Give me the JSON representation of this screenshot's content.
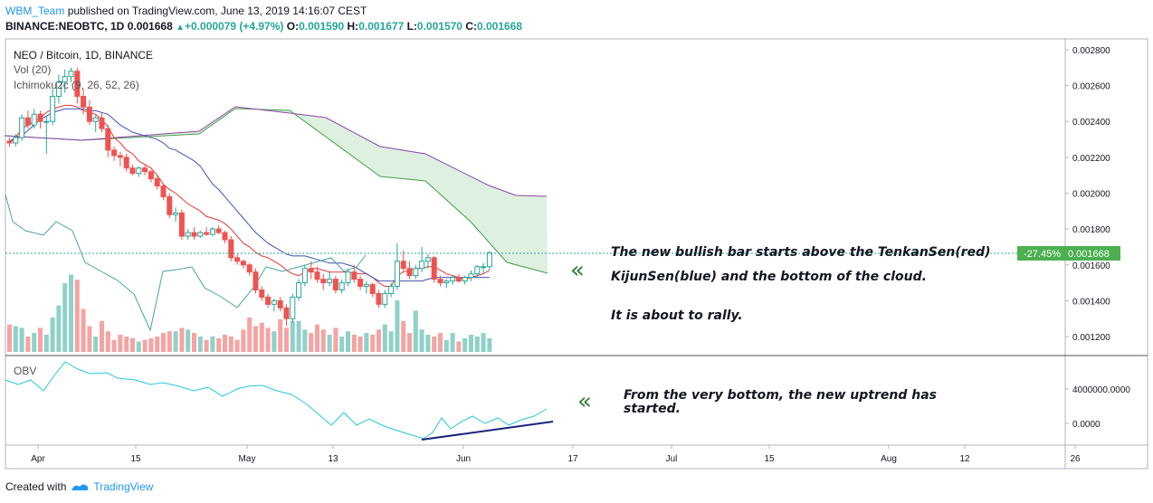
{
  "header": {
    "username": "WBM_Team",
    "published": "published on TradingView.com, June 13, 2019 14:16:07 CEST",
    "symbol": "BINANCE:NEOBTC, 1D",
    "last": "0.001668",
    "change": "+0.000079 (+4.97%)",
    "o_label": "O:",
    "o_value": "0.001590",
    "h_label": "H:",
    "h_value": "0.001677",
    "l_label": "L:",
    "l_value": "0.001570",
    "c_label": "C:",
    "c_value": "0.001668"
  },
  "legend": {
    "title": "NEO / Bitcoin, 1D, BINANCE",
    "vol": "Vol (20)",
    "ichimoku": "Ichimoku2c (9, 26, 52, 26)",
    "obv": "OBV"
  },
  "price_tag": {
    "pct": "-27.45%",
    "price": "0.001668",
    "color": "#4caf50"
  },
  "annotations": {
    "main_line1": "The new bullish bar starts above the TenkanSen(red)",
    "main_line2": "KijunSen(blue) and the bottom of the cloud.",
    "main_line3": "It is about to rally.",
    "obv_line1": "From the very bottom, the new uptrend has",
    "obv_line2": "started.",
    "arrow": "«"
  },
  "footer": {
    "created": "Created with",
    "brand": "TradingView"
  },
  "colors": {
    "up": "#26a69a",
    "down": "#ef5350",
    "vol_up": "#8fd1c8",
    "vol_down": "#f5a3a3",
    "tenkan": "#e53935",
    "kijun": "#3f51b5",
    "chikou": "#4aa3a3",
    "span_a": "#43a047",
    "span_b": "#8e44ad",
    "cloud": "#c8e6c9",
    "obv": "#26c6da",
    "trend": "#1a237e",
    "arrow": "#2e7d32"
  },
  "chart_data": {
    "type": "candlestick",
    "price_axis": {
      "ylim": [
        0.00113,
        0.00284
      ],
      "ticks": [
        "0.002800",
        "0.002600",
        "0.002400",
        "0.002200",
        "0.002000",
        "0.001800",
        "0.001600",
        "0.001400",
        "0.001200"
      ]
    },
    "obv_axis": {
      "ticks": [
        "4000000.0000",
        "0.0000"
      ]
    },
    "x_ticks": [
      "Apr",
      "15",
      "May",
      "13",
      "Jun",
      "17",
      "Jul",
      "15",
      "Aug",
      "12",
      "26"
    ],
    "candles": [
      [
        0.00229,
        0.00231,
        0.00226,
        0.00228
      ],
      [
        0.00228,
        0.00233,
        0.00226,
        0.00231
      ],
      [
        0.00231,
        0.00244,
        0.00229,
        0.00242
      ],
      [
        0.00242,
        0.00246,
        0.00236,
        0.00238
      ],
      [
        0.00238,
        0.00247,
        0.00236,
        0.00244
      ],
      [
        0.00244,
        0.00246,
        0.00236,
        0.0024
      ],
      [
        0.0024,
        0.00243,
        0.00222,
        0.0024
      ],
      [
        0.0024,
        0.00258,
        0.00238,
        0.00254
      ],
      [
        0.00254,
        0.00266,
        0.0025,
        0.00262
      ],
      [
        0.00262,
        0.00269,
        0.00256,
        0.00265
      ],
      [
        0.00265,
        0.0027,
        0.00262,
        0.00268
      ],
      [
        0.00268,
        0.0027,
        0.0025,
        0.00254
      ],
      [
        0.00254,
        0.00258,
        0.00244,
        0.00248
      ],
      [
        0.00248,
        0.00252,
        0.00238,
        0.0024
      ],
      [
        0.0024,
        0.00244,
        0.00234,
        0.00242
      ],
      [
        0.00242,
        0.00245,
        0.00234,
        0.00236
      ],
      [
        0.00236,
        0.00238,
        0.0022,
        0.00224
      ],
      [
        0.00224,
        0.00226,
        0.00218,
        0.00221
      ],
      [
        0.00221,
        0.00223,
        0.00215,
        0.0022
      ],
      [
        0.0022,
        0.00222,
        0.00212,
        0.00214
      ],
      [
        0.00214,
        0.00216,
        0.0021,
        0.00211
      ],
      [
        0.00211,
        0.00215,
        0.00209,
        0.00214
      ],
      [
        0.00214,
        0.00216,
        0.0021,
        0.00212
      ],
      [
        0.00212,
        0.00213,
        0.00206,
        0.00208
      ],
      [
        0.00208,
        0.0021,
        0.00202,
        0.00204
      ],
      [
        0.00204,
        0.00205,
        0.00196,
        0.00198
      ],
      [
        0.00198,
        0.002,
        0.00186,
        0.00188
      ],
      [
        0.00188,
        0.00192,
        0.00184,
        0.00189
      ],
      [
        0.00189,
        0.00191,
        0.00174,
        0.00176
      ],
      [
        0.00176,
        0.0018,
        0.00174,
        0.00178
      ],
      [
        0.00178,
        0.00181,
        0.00174,
        0.00176
      ],
      [
        0.00176,
        0.00179,
        0.00175,
        0.00178
      ],
      [
        0.00178,
        0.00181,
        0.00176,
        0.00177
      ],
      [
        0.00177,
        0.00181,
        0.00176,
        0.0018
      ],
      [
        0.0018,
        0.00182,
        0.00177,
        0.00178
      ],
      [
        0.00178,
        0.00179,
        0.00172,
        0.00174
      ],
      [
        0.00174,
        0.00176,
        0.00162,
        0.00164
      ],
      [
        0.00164,
        0.00166,
        0.0016,
        0.00162
      ],
      [
        0.00162,
        0.00163,
        0.00158,
        0.0016
      ],
      [
        0.0016,
        0.00161,
        0.00154,
        0.00156
      ],
      [
        0.00156,
        0.00158,
        0.00144,
        0.00146
      ],
      [
        0.00146,
        0.00148,
        0.0014,
        0.00142
      ],
      [
        0.00142,
        0.00144,
        0.00136,
        0.00138
      ],
      [
        0.00138,
        0.00141,
        0.00134,
        0.0014
      ],
      [
        0.0014,
        0.00142,
        0.00134,
        0.00136
      ],
      [
        0.00136,
        0.00138,
        0.00126,
        0.0013
      ],
      [
        0.0013,
        0.00144,
        0.00128,
        0.00142
      ],
      [
        0.00142,
        0.00152,
        0.0014,
        0.0015
      ],
      [
        0.0015,
        0.0016,
        0.00148,
        0.00158
      ],
      [
        0.00158,
        0.00162,
        0.00152,
        0.00156
      ],
      [
        0.00156,
        0.00159,
        0.0015,
        0.00152
      ],
      [
        0.00152,
        0.00155,
        0.00146,
        0.0015
      ],
      [
        0.0015,
        0.00156,
        0.00148,
        0.00152
      ],
      [
        0.00152,
        0.00154,
        0.00144,
        0.00146
      ],
      [
        0.00146,
        0.00152,
        0.00144,
        0.0015
      ],
      [
        0.0015,
        0.00158,
        0.00148,
        0.00156
      ],
      [
        0.00156,
        0.0016,
        0.0015,
        0.00152
      ],
      [
        0.00152,
        0.00154,
        0.00146,
        0.00148
      ],
      [
        0.00148,
        0.00151,
        0.00144,
        0.00149
      ],
      [
        0.00149,
        0.0015,
        0.00142,
        0.00144
      ],
      [
        0.00144,
        0.00146,
        0.00136,
        0.00138
      ],
      [
        0.00138,
        0.00146,
        0.00136,
        0.00144
      ],
      [
        0.00144,
        0.0015,
        0.00142,
        0.00148
      ],
      [
        0.00148,
        0.00172,
        0.00146,
        0.00162
      ],
      [
        0.00162,
        0.00168,
        0.00156,
        0.00158
      ],
      [
        0.00158,
        0.00162,
        0.00152,
        0.00154
      ],
      [
        0.00154,
        0.0016,
        0.00152,
        0.00158
      ],
      [
        0.00158,
        0.0017,
        0.00156,
        0.00162
      ],
      [
        0.00162,
        0.00166,
        0.00158,
        0.00164
      ],
      [
        0.00164,
        0.00165,
        0.0015,
        0.00152
      ],
      [
        0.00152,
        0.00154,
        0.00148,
        0.0015
      ],
      [
        0.0015,
        0.00152,
        0.00147,
        0.00151
      ],
      [
        0.00151,
        0.00154,
        0.00149,
        0.00153
      ],
      [
        0.00153,
        0.00155,
        0.0015,
        0.00151
      ],
      [
        0.00151,
        0.00154,
        0.00149,
        0.00153
      ],
      [
        0.00153,
        0.00157,
        0.00151,
        0.00155
      ],
      [
        0.00155,
        0.0016,
        0.00153,
        0.00159
      ],
      [
        0.00159,
        0.00161,
        0.00155,
        0.00159
      ],
      [
        0.00159,
        0.001677,
        0.00157,
        0.001668
      ]
    ],
    "volume": [
      16,
      15,
      14,
      9,
      11,
      14,
      10,
      20,
      27,
      40,
      45,
      42,
      25,
      15,
      9,
      18,
      12,
      7,
      10,
      9,
      8,
      6,
      7,
      8,
      9,
      11,
      12,
      12,
      14,
      13,
      11,
      9,
      7,
      9,
      8,
      10,
      9,
      7,
      13,
      20,
      15,
      17,
      14,
      12,
      19,
      14,
      18,
      18,
      13,
      11,
      16,
      13,
      10,
      14,
      9,
      12,
      10,
      9,
      11,
      10,
      13,
      16,
      12,
      30,
      18,
      11,
      24,
      13,
      10,
      9,
      11,
      7,
      11,
      6,
      8,
      10,
      9,
      11,
      8
    ],
    "tenkan": [
      0.00229,
      0.00231,
      0.00236,
      0.00238,
      0.0024,
      0.00242,
      0.00245,
      0.00247,
      0.00248,
      0.00249,
      0.00249,
      0.00248,
      0.00246,
      0.00245,
      0.00244,
      0.00241,
      0.00237,
      0.00231,
      0.00228,
      0.00224,
      0.00222,
      0.00218,
      0.00216,
      0.00214,
      0.0021,
      0.00205,
      0.00202,
      0.002,
      0.00197,
      0.00194,
      0.00192,
      0.0019,
      0.00187,
      0.00186,
      0.00185,
      0.00183,
      0.0018,
      0.00176,
      0.00172,
      0.0017,
      0.00167,
      0.00165,
      0.00164,
      0.00162,
      0.0016,
      0.00157,
      0.00155,
      0.00154,
      0.00156,
      0.00158,
      0.00158,
      0.00157,
      0.00156,
      0.00156,
      0.00156,
      0.00156,
      0.00155,
      0.00155,
      0.00155,
      0.00153,
      0.0015,
      0.00148,
      0.00148,
      0.00154,
      0.00156,
      0.00157,
      0.00158,
      0.00158,
      0.00159,
      0.00159,
      0.00157,
      0.00155,
      0.00154,
      0.00153,
      0.00152,
      0.00153,
      0.00154,
      0.00155,
      0.00157
    ],
    "kijun": [
      0.00229,
      0.0023,
      0.00232,
      0.00235,
      0.00238,
      0.00241,
      0.00243,
      0.00245,
      0.00246,
      0.00247,
      0.00247,
      0.00247,
      0.00247,
      0.00246,
      0.00246,
      0.00245,
      0.00244,
      0.00241,
      0.00238,
      0.00236,
      0.00234,
      0.00233,
      0.00232,
      0.00231,
      0.0023,
      0.00228,
      0.00225,
      0.00224,
      0.00222,
      0.0022,
      0.00218,
      0.00215,
      0.0021,
      0.00205,
      0.00202,
      0.00198,
      0.00194,
      0.0019,
      0.00186,
      0.00182,
      0.00178,
      0.00175,
      0.00172,
      0.0017,
      0.00168,
      0.00166,
      0.00165,
      0.00165,
      0.00165,
      0.00164,
      0.00163,
      0.00162,
      0.00161,
      0.00161,
      0.00161,
      0.0016,
      0.00159,
      0.00157,
      0.00155,
      0.00153,
      0.00151,
      0.00151,
      0.00151,
      0.00151,
      0.00151,
      0.00151,
      0.00151,
      0.00151,
      0.00152,
      0.00153,
      0.00153,
      0.00153,
      0.00153,
      0.00153,
      0.00153,
      0.00153,
      0.00153,
      0.00153,
      0.00153
    ]
  }
}
